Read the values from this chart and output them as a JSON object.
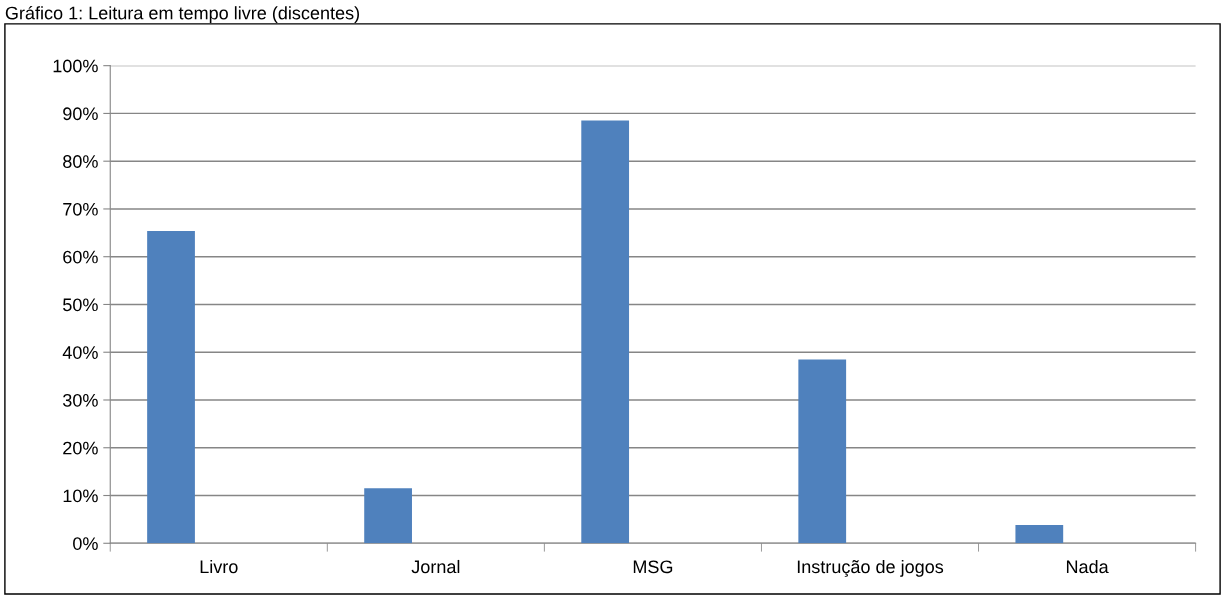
{
  "chart_data": {
    "type": "bar",
    "title": "Gráfico 1: Leitura em tempo livre (discentes)",
    "categories": [
      "Livro",
      "Jornal",
      "MSG",
      "Instrução de jogos",
      "Nada"
    ],
    "series": [
      {
        "color": "#4f81bd",
        "values": [
          65.4,
          11.5,
          88.5,
          38.5,
          3.8
        ]
      }
    ],
    "ylim": [
      0,
      100
    ],
    "yticks": [
      {
        "value": 0,
        "label": "0%"
      },
      {
        "value": 10,
        "label": "10%"
      },
      {
        "value": 20,
        "label": "20%"
      },
      {
        "value": 30,
        "label": "30%"
      },
      {
        "value": 40,
        "label": "40%"
      },
      {
        "value": 50,
        "label": "50%"
      },
      {
        "value": 60,
        "label": "60%"
      },
      {
        "value": 70,
        "label": "70%"
      },
      {
        "value": 80,
        "label": "80%"
      },
      {
        "value": 90,
        "label": "90%"
      },
      {
        "value": 100,
        "label": "100%"
      }
    ],
    "grid": "y",
    "legend": false
  }
}
